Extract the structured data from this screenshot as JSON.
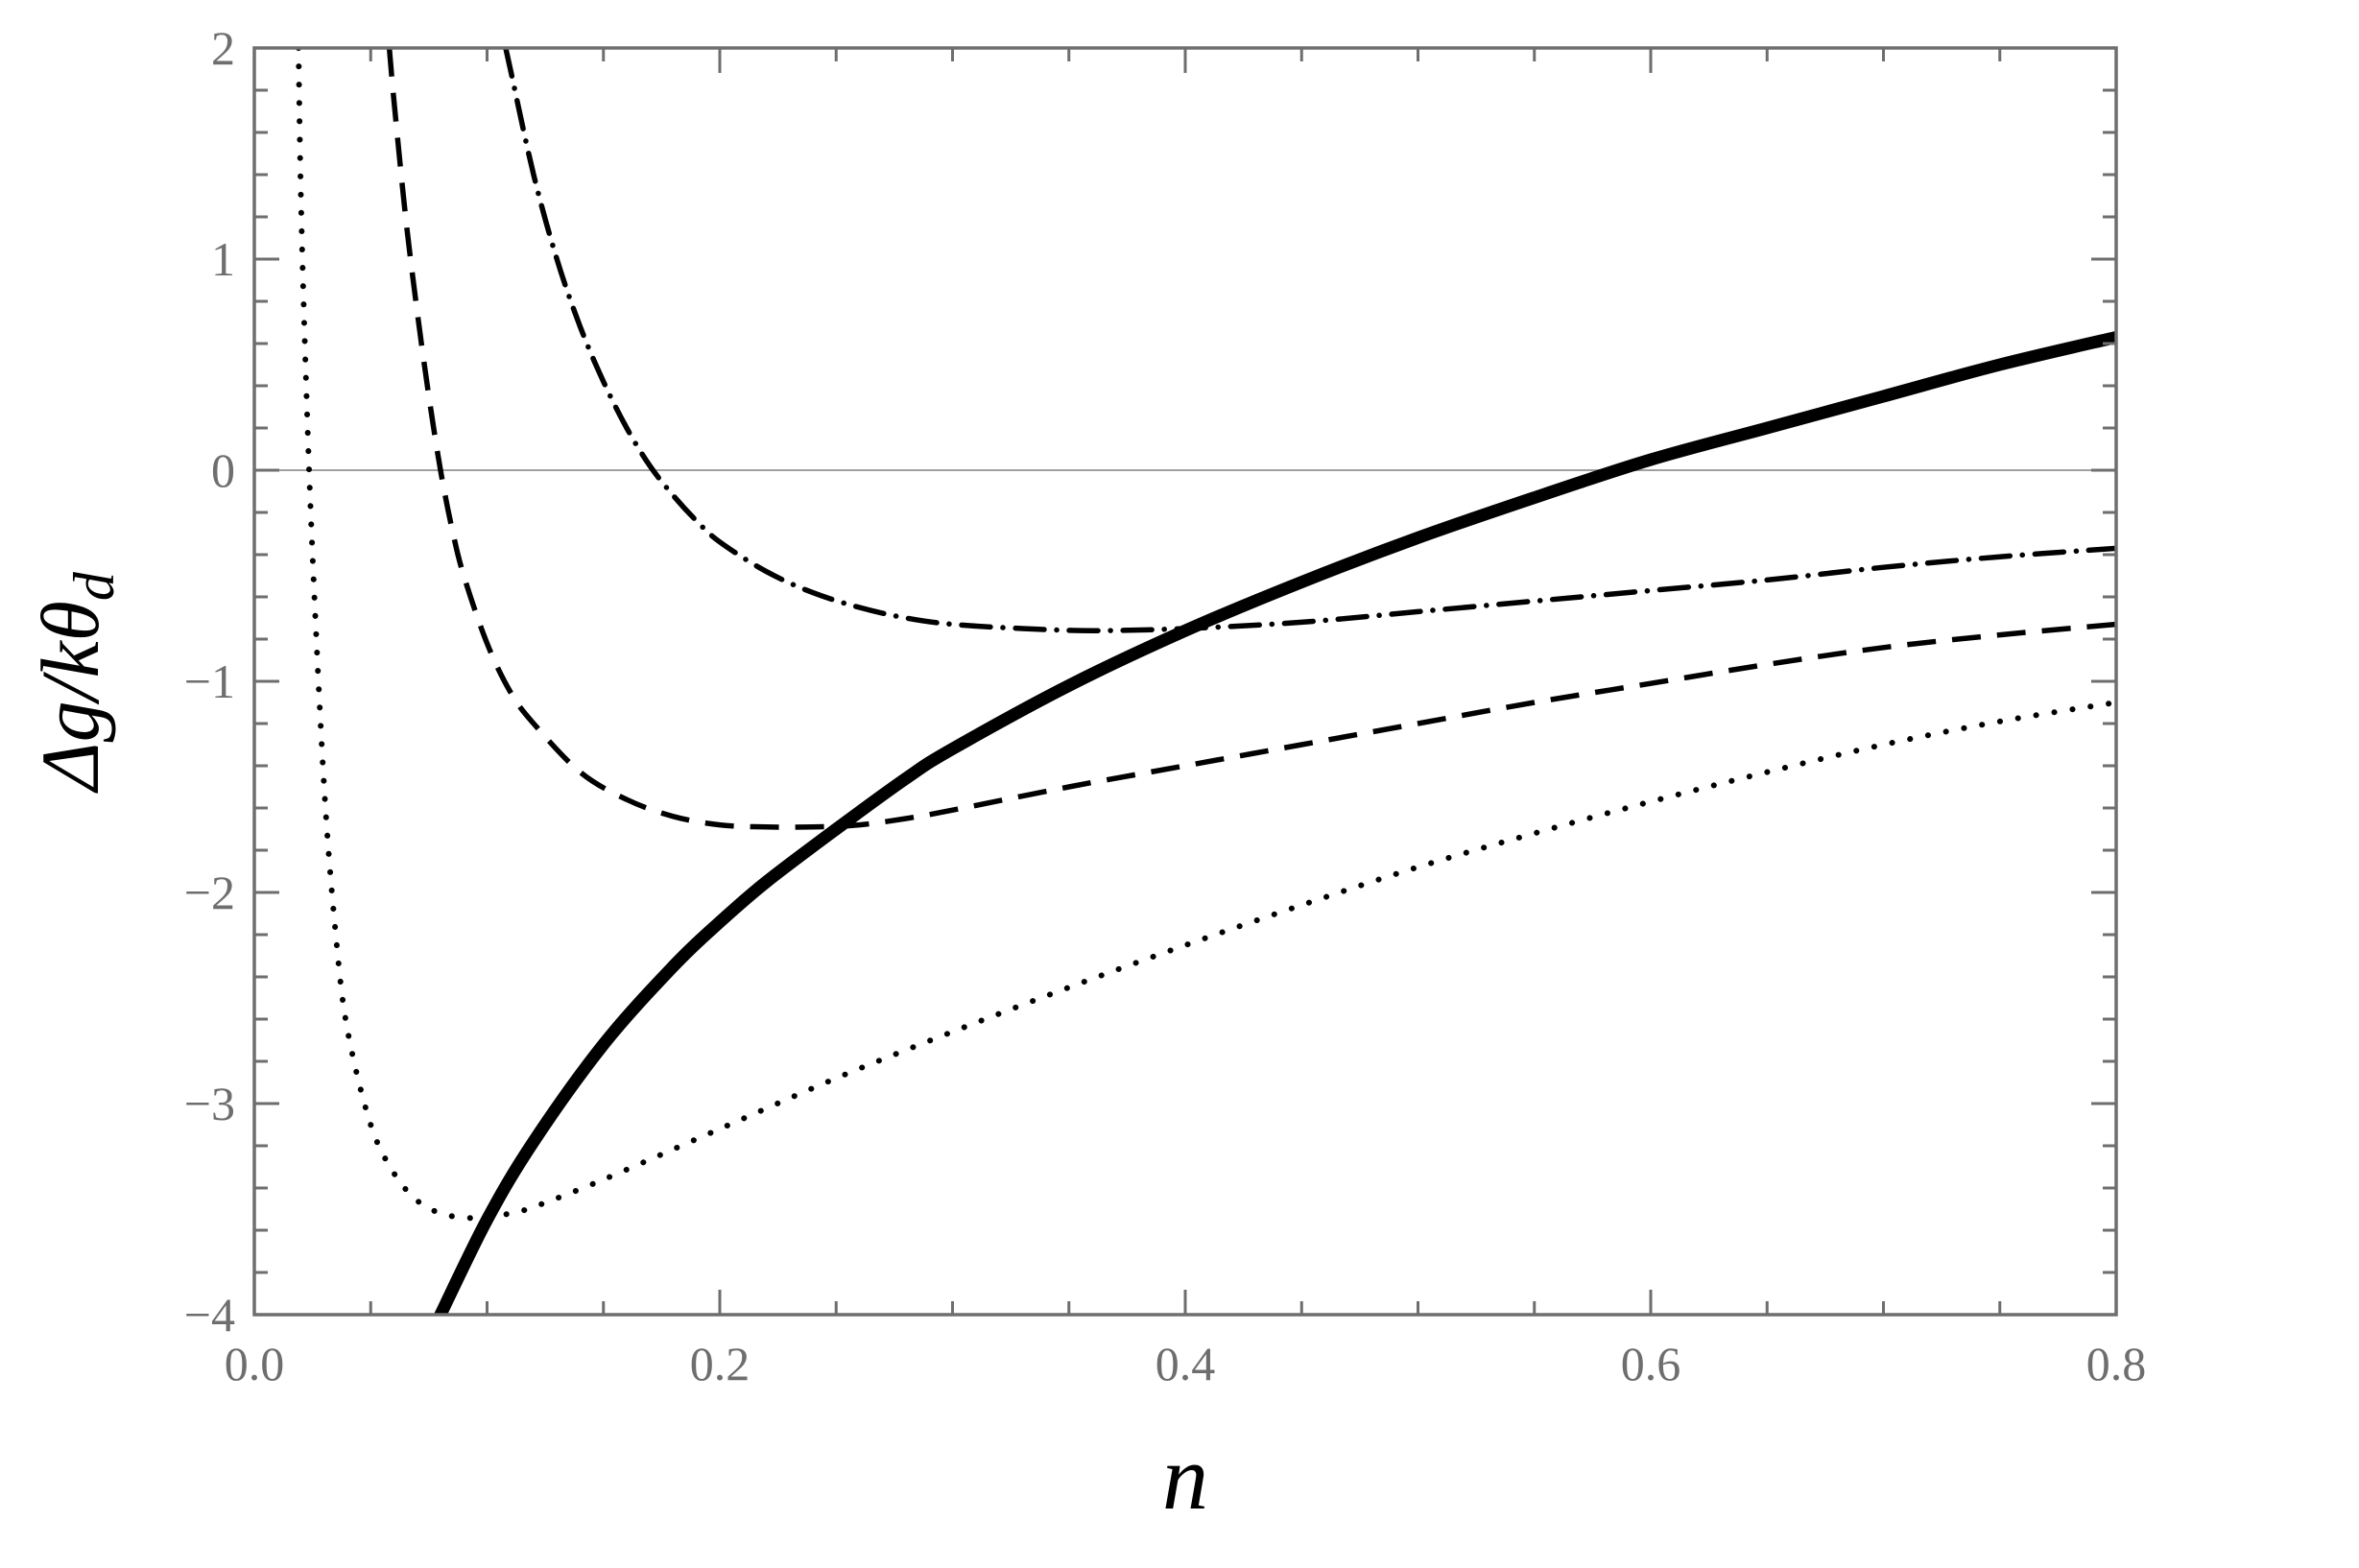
{
  "chart_data": {
    "type": "line",
    "xlabel": "n",
    "ylabel": "Δg/kθ_d",
    "ylabel_parts": {
      "main": "Δg/kθ",
      "sub": "d"
    },
    "xlim": [
      0.0,
      0.8
    ],
    "ylim": [
      -4,
      2
    ],
    "x_ticks": [
      0.0,
      0.2,
      0.4,
      0.6,
      0.8
    ],
    "x_tick_labels": [
      "0.0",
      "0.2",
      "0.4",
      "0.6",
      "0.8"
    ],
    "y_ticks": [
      -4,
      -3,
      -2,
      -1,
      0,
      1,
      2
    ],
    "y_tick_labels": [
      "−4",
      "−3",
      "−2",
      "−1",
      "0",
      "1",
      "2"
    ],
    "grid": false,
    "zero_line": true,
    "colors": {
      "frame": "#6e6e6e",
      "series": "#000000",
      "zero_line": "#a0a0a0"
    },
    "series": [
      {
        "style": "solid",
        "x": [
          0.08,
          0.1,
          0.12,
          0.15,
          0.18,
          0.2,
          0.22,
          0.25,
          0.28,
          0.3,
          0.35,
          0.4,
          0.45,
          0.5,
          0.55,
          0.6,
          0.65,
          0.7,
          0.75,
          0.8
        ],
        "y": [
          -4.0,
          -3.55,
          -3.18,
          -2.72,
          -2.35,
          -2.14,
          -1.95,
          -1.7,
          -1.46,
          -1.32,
          -1.02,
          -0.76,
          -0.53,
          -0.32,
          -0.13,
          0.05,
          0.2,
          0.35,
          0.5,
          0.63
        ]
      },
      {
        "style": "dotted",
        "x": [
          0.019,
          0.02,
          0.022,
          0.025,
          0.03,
          0.035,
          0.04,
          0.05,
          0.06,
          0.07,
          0.08,
          0.09,
          0.1,
          0.11,
          0.12,
          0.15,
          0.2,
          0.25,
          0.3,
          0.35,
          0.4,
          0.45,
          0.5,
          0.55,
          0.6,
          0.65,
          0.7,
          0.75,
          0.8
        ],
        "y": [
          2.0,
          1.3,
          0.5,
          -0.4,
          -1.5,
          -2.2,
          -2.65,
          -3.1,
          -3.33,
          -3.46,
          -3.52,
          -3.54,
          -3.54,
          -3.52,
          -3.49,
          -3.36,
          -3.12,
          -2.88,
          -2.66,
          -2.45,
          -2.25,
          -2.06,
          -1.88,
          -1.72,
          -1.57,
          -1.43,
          -1.3,
          -1.19,
          -1.1
        ]
      },
      {
        "style": "dashed",
        "x": [
          0.058,
          0.06,
          0.065,
          0.07,
          0.075,
          0.08,
          0.085,
          0.09,
          0.1,
          0.11,
          0.12,
          0.14,
          0.16,
          0.18,
          0.2,
          0.22,
          0.24,
          0.26,
          0.28,
          0.3,
          0.35,
          0.4,
          0.45,
          0.5,
          0.55,
          0.6,
          0.65,
          0.7,
          0.75,
          0.8
        ],
        "y": [
          2.0,
          1.75,
          1.2,
          0.75,
          0.35,
          0.0,
          -0.28,
          -0.5,
          -0.82,
          -1.05,
          -1.2,
          -1.43,
          -1.56,
          -1.64,
          -1.68,
          -1.69,
          -1.69,
          -1.68,
          -1.65,
          -1.61,
          -1.5,
          -1.4,
          -1.3,
          -1.2,
          -1.1,
          -1.01,
          -0.92,
          -0.84,
          -0.78,
          -0.73
        ]
      },
      {
        "style": "dashdot",
        "x": [
          0.108,
          0.11,
          0.12,
          0.13,
          0.14,
          0.15,
          0.16,
          0.17,
          0.18,
          0.19,
          0.2,
          0.22,
          0.24,
          0.26,
          0.28,
          0.3,
          0.33,
          0.36,
          0.4,
          0.45,
          0.5,
          0.55,
          0.6,
          0.65,
          0.7,
          0.75,
          0.8
        ],
        "y": [
          2.0,
          1.9,
          1.4,
          1.0,
          0.68,
          0.42,
          0.2,
          0.02,
          -0.12,
          -0.24,
          -0.34,
          -0.48,
          -0.58,
          -0.65,
          -0.7,
          -0.73,
          -0.75,
          -0.76,
          -0.75,
          -0.72,
          -0.67,
          -0.62,
          -0.57,
          -0.52,
          -0.46,
          -0.41,
          -0.37
        ]
      }
    ]
  }
}
